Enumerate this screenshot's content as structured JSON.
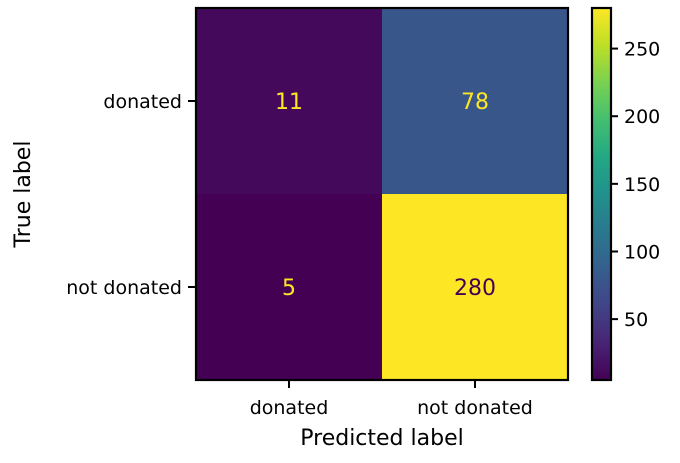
{
  "chart_data": {
    "type": "heatmap",
    "title": "",
    "xlabel": "Predicted label",
    "ylabel": "True label",
    "x_categories": [
      "donated",
      "not donated"
    ],
    "y_categories": [
      "donated",
      "not donated"
    ],
    "values": [
      [
        11,
        78
      ],
      [
        5,
        280
      ]
    ],
    "colormap": "viridis",
    "colorbar": {
      "range": [
        5,
        280
      ],
      "ticks": [
        50,
        100,
        150,
        200,
        250
      ],
      "tick_labels": [
        "50",
        "100",
        "150",
        "200",
        "250"
      ],
      "placement": "right"
    },
    "grid": false,
    "legend": "none"
  },
  "colors": {
    "low_cell_text": "#fde725",
    "high_cell_text": "#440154",
    "axes": "#000000"
  }
}
